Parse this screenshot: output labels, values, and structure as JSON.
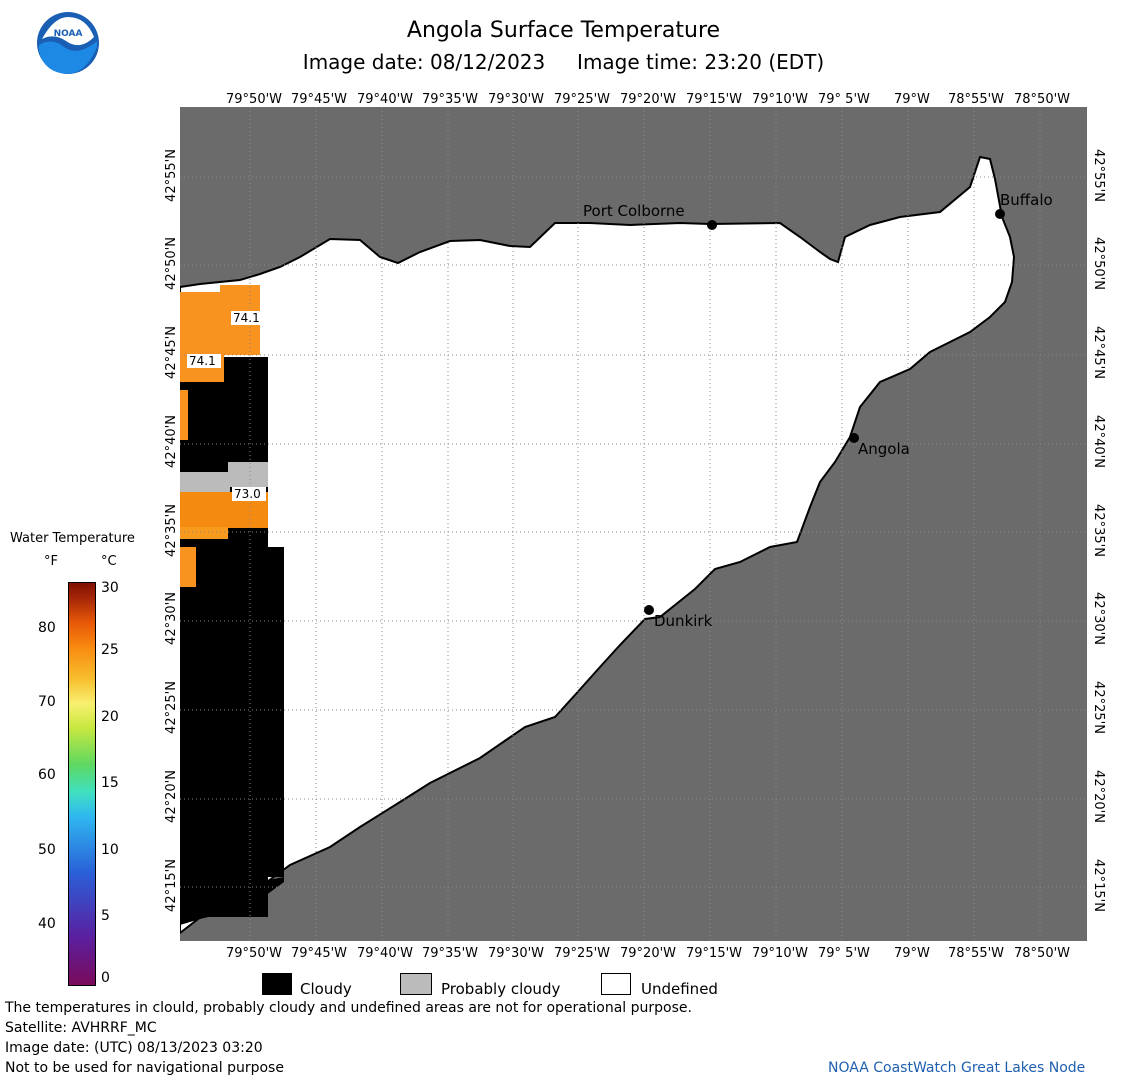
{
  "header": {
    "title": "Angola Surface Temperature",
    "subtitle": "Image date: 08/12/2023     Image time: 23:20 (EDT)"
  },
  "logo": {
    "text": "NOAA",
    "icon": "noaa-logo-icon"
  },
  "axes": {
    "lon_labels": [
      "79°50'W",
      "79°45'W",
      "79°40'W",
      "79°35'W",
      "79°30'W",
      "79°25'W",
      "79°20'W",
      "79°15'W",
      "79°10'W",
      "79° 5'W",
      "79°W",
      "78°55'W",
      "78°50'W"
    ],
    "lat_labels": [
      "42°55'N",
      "42°50'N",
      "42°45'N",
      "42°40'N",
      "42°35'N",
      "42°30'N",
      "42°25'N",
      "42°20'N",
      "42°15'N"
    ]
  },
  "places": [
    {
      "name": "Port Colborne"
    },
    {
      "name": "Buffalo"
    },
    {
      "name": "Angola"
    },
    {
      "name": "Dunkirk"
    }
  ],
  "temperature_labels": [
    "74.1",
    "74.1",
    "73.0"
  ],
  "colorbar": {
    "title": "Water Temperature",
    "unit_f": "°F",
    "unit_c": "°C",
    "f_ticks": [
      "80",
      "70",
      "60",
      "50",
      "40"
    ],
    "c_ticks": [
      "30",
      "25",
      "20",
      "15",
      "10",
      "5",
      "0"
    ],
    "colors": [
      "#7a0a5a",
      "#5a20a0",
      "#2a60d8",
      "#30b8f0",
      "#40e0c0",
      "#60d860",
      "#c8e840",
      "#f8f070",
      "#f8c030",
      "#f88a10",
      "#e85a08",
      "#a82808",
      "#801000"
    ]
  },
  "legend": [
    {
      "label": "Cloudy",
      "color": "#000000"
    },
    {
      "label": "Probably cloudy",
      "color": "#bbbbbb"
    },
    {
      "label": "Undefined",
      "color": "#ffffff"
    }
  ],
  "colors": {
    "land": "#6b6b6b",
    "water_undefined": "#ffffff",
    "cloud": "#000000",
    "warm": "#f7931e"
  },
  "footer": {
    "note": "The temperatures in clould, probably cloudy and undefined areas are not for operational purpose.",
    "satellite": "Satellite: AVHRRF_MC",
    "utc_date": "Image date: (UTC) 08/13/2023  03:20",
    "nav": "Not to be used for navigational purpose",
    "credit": "NOAA CoastWatch Great Lakes Node"
  }
}
